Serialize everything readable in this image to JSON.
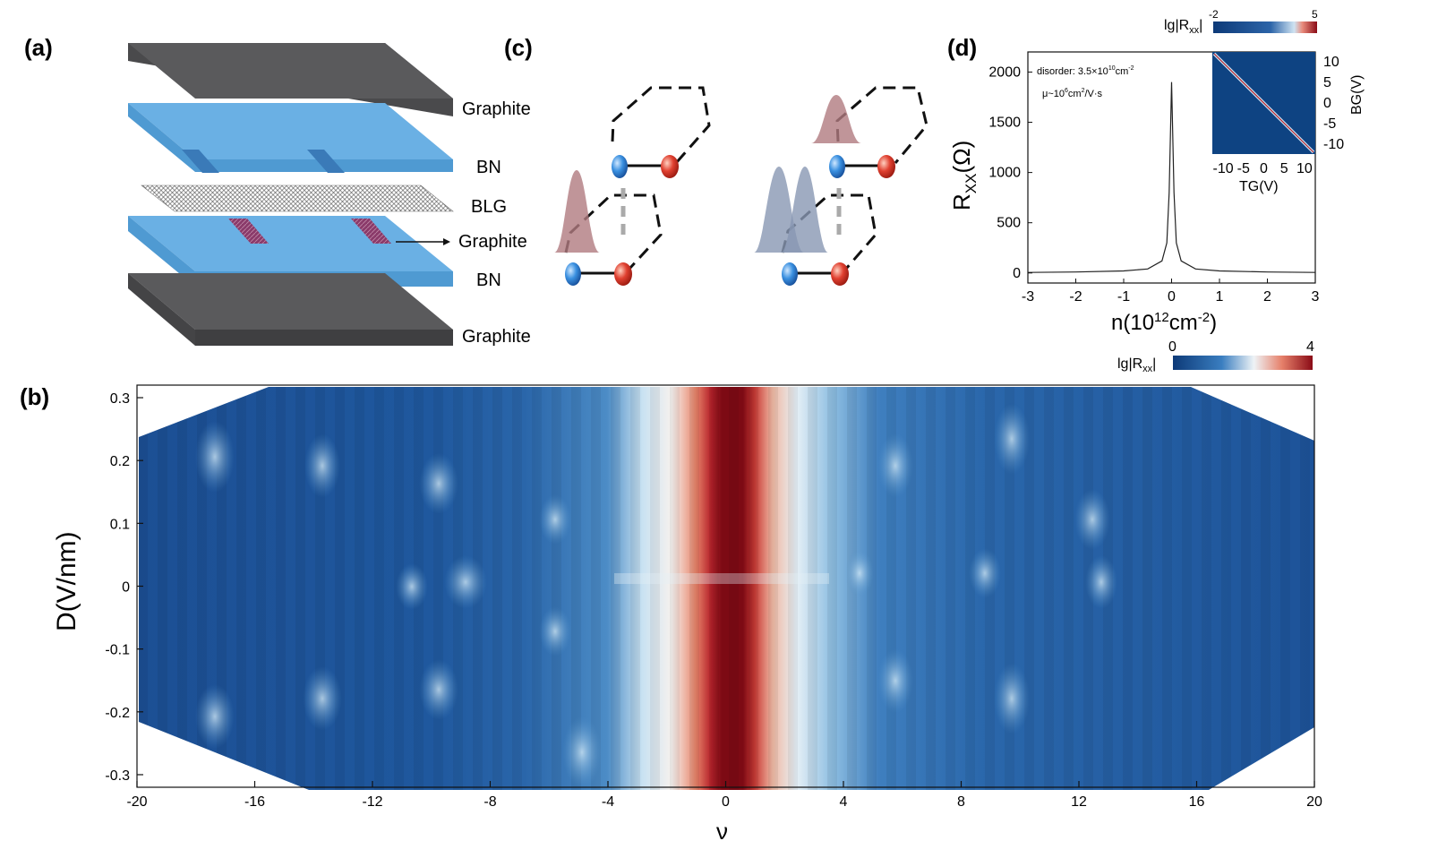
{
  "panels": {
    "a": {
      "label": "(a)",
      "layers": [
        "Graphite",
        "BN",
        "BLG",
        "Graphite",
        "BN",
        "Graphite"
      ]
    },
    "b": {
      "label": "(b)",
      "xlabel": "ν",
      "ylabel": "D(V/nm)",
      "xticks": [
        "-20",
        "-16",
        "-12",
        "-8",
        "-4",
        "0",
        "4",
        "8",
        "12",
        "16",
        "20"
      ],
      "yticks": [
        "0.3",
        "0.2",
        "0.1",
        "0",
        "-0.1",
        "-0.2",
        "-0.3"
      ],
      "colorbar": {
        "label_main": "lg|R",
        "label_sub": "xx",
        "label_end": "|",
        "min": "0",
        "max": "4"
      }
    },
    "c": {
      "label": "(c)"
    },
    "d": {
      "label": "(d)",
      "xlabel_main": "n(10",
      "xlabel_sup": "12",
      "xlabel_mid": "cm",
      "xlabel_sup2": "-2",
      "xlabel_end": ")",
      "ylabel_main": "R",
      "ylabel_sub": "XX",
      "ylabel_end": "(Ω)",
      "xticks": [
        "-3",
        "-2",
        "-1",
        "0",
        "1",
        "2",
        "3"
      ],
      "yticks": [
        "2000",
        "1500",
        "1000",
        "500",
        "0"
      ],
      "disorder_main": "disorder: 3.5×10",
      "disorder_sup": "10",
      "disorder_end": "cm",
      "disorder_sup2": "-2",
      "mobility_main": "μ~10",
      "mobility_sup": "6",
      "mobility_end": "cm",
      "mobility_sup2": "2",
      "mobility_tail": "/V·s",
      "inset": {
        "xlabel": "TG(V)",
        "ylabel": "BG(V)",
        "xticks": [
          "-10",
          "-5",
          "0",
          "5",
          "10"
        ],
        "yticks": [
          "10",
          "5",
          "0",
          "-5",
          "-10"
        ]
      },
      "colorbar": {
        "label_main": "lg|R",
        "label_sub": "xx",
        "label_end": "|",
        "min": "-2",
        "max": "5"
      }
    }
  },
  "chart_data": [
    {
      "type": "line",
      "panel": "d",
      "x": [
        -3,
        -2,
        -1,
        -0.5,
        -0.2,
        -0.1,
        -0.05,
        0,
        0.05,
        0.1,
        0.2,
        0.5,
        1,
        2,
        3
      ],
      "y": [
        5,
        10,
        20,
        40,
        120,
        300,
        800,
        1900,
        800,
        300,
        120,
        40,
        20,
        10,
        5
      ],
      "xlim": [
        -3,
        3
      ],
      "ylim": [
        -100,
        2200
      ]
    },
    {
      "type": "heatmap",
      "panel": "b",
      "xlim": [
        -20,
        20
      ],
      "ylim": [
        -0.32,
        0.32
      ],
      "clim": [
        0,
        4
      ],
      "colorscale": [
        "#123a78",
        "#2a6cb0",
        "#8fc0e0",
        "#f2f2f2",
        "#e8866a",
        "#c0272d",
        "#7a0b12"
      ]
    }
  ],
  "colors": {
    "bn": "#6ab0e4",
    "graphite": "#4a4a4c",
    "contact": "#8a3a6a",
    "blue_atom": "#2a7fd0",
    "red_atom": "#d03020",
    "wave_red": "#b07a80",
    "wave_blue": "#8897b3"
  }
}
